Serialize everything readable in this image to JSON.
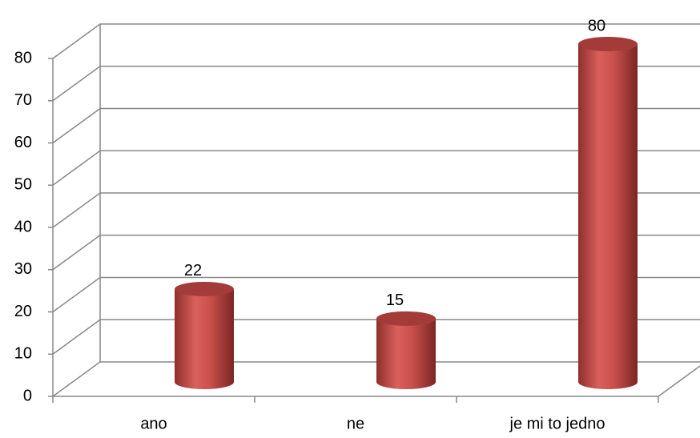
{
  "chart_data": {
    "type": "bar3d",
    "categories": [
      "ano",
      "ne",
      "je mi to jedno"
    ],
    "values": [
      22,
      15,
      80
    ],
    "color": "#c0504d",
    "ylim": [
      0,
      80
    ],
    "yticks": [
      0,
      10,
      20,
      30,
      40,
      50,
      60,
      70,
      80
    ],
    "grid": true
  }
}
